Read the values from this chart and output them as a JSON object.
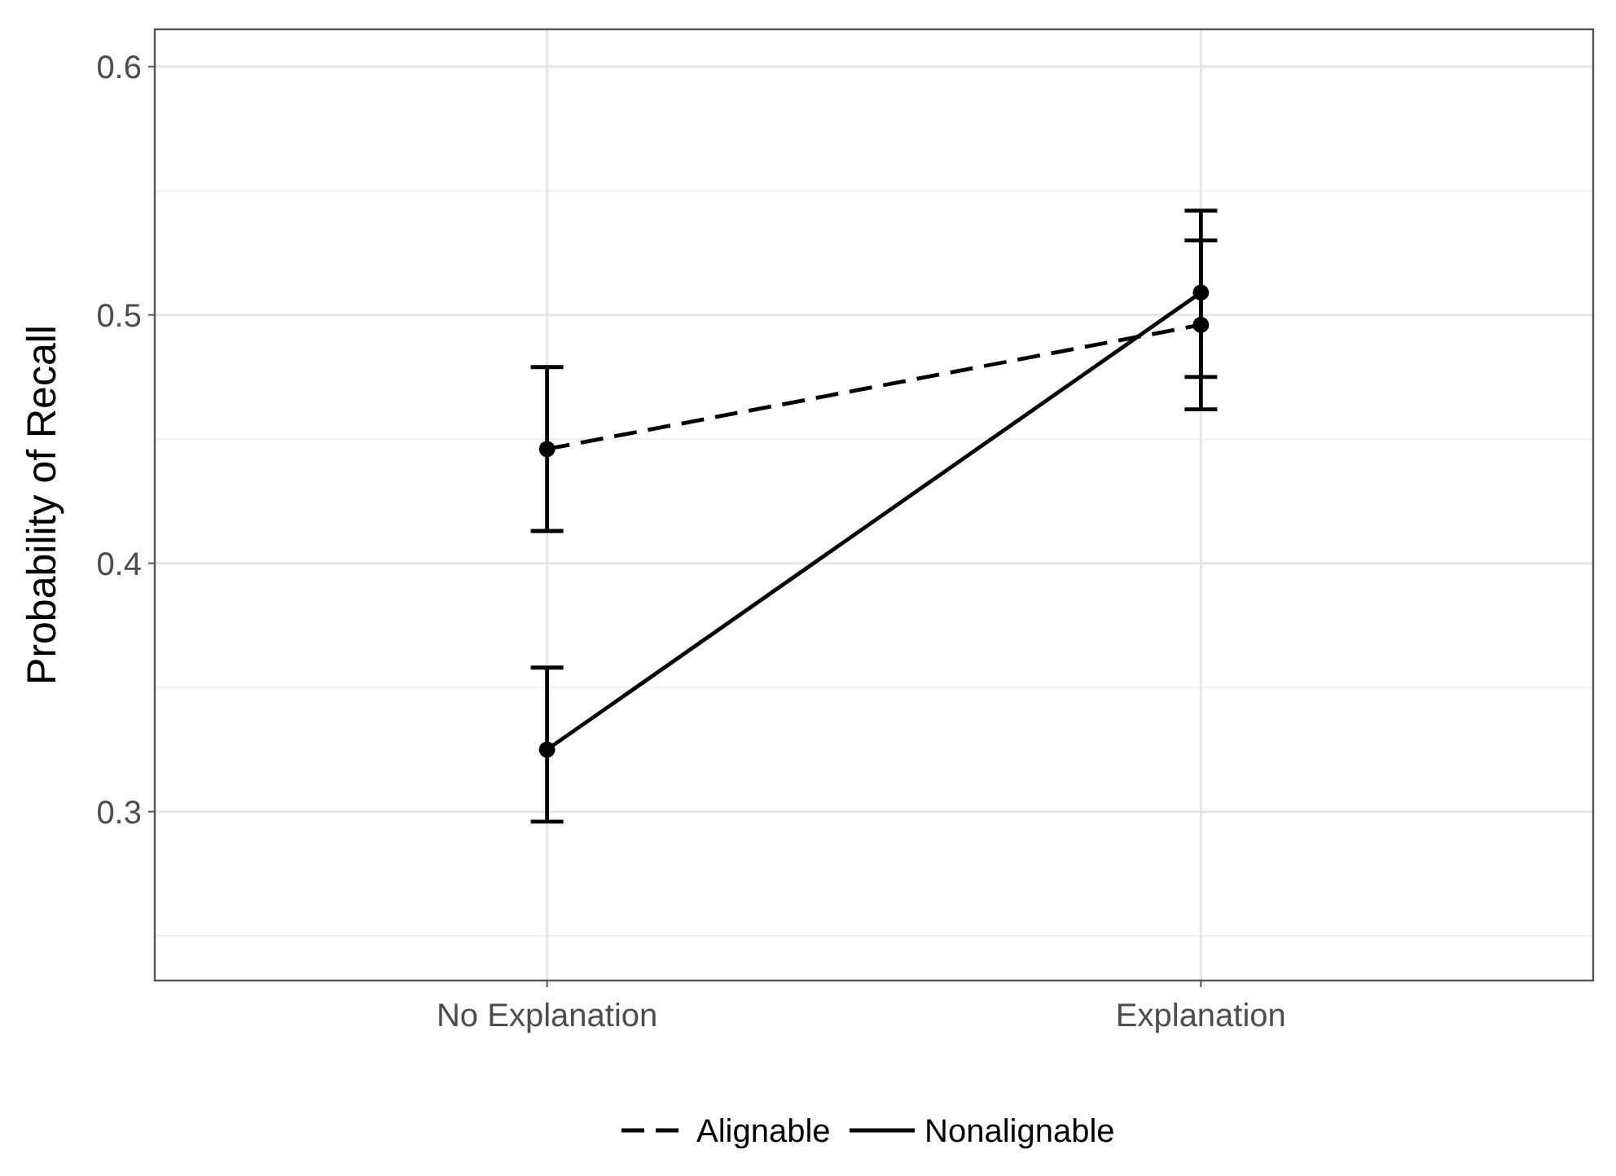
{
  "chart_data": {
    "type": "line",
    "ylabel": "Probability of Recall",
    "categories": [
      "No Explanation",
      "Explanation"
    ],
    "series": [
      {
        "name": "Alignable",
        "color": "#000000",
        "line_style": "dashed",
        "values": [
          0.446,
          0.496
        ],
        "errors": [
          [
            0.413,
            0.479
          ],
          [
            0.462,
            0.53
          ]
        ]
      },
      {
        "name": "Nonalignable",
        "color": "#000000",
        "line_style": "solid",
        "values": [
          0.325,
          0.509
        ],
        "errors": [
          [
            0.296,
            0.358
          ],
          [
            0.475,
            0.542
          ]
        ]
      }
    ],
    "ylim": [
      0.232,
      0.615
    ],
    "yticks": [
      0.3,
      0.4,
      0.5,
      0.6
    ],
    "grid": true,
    "legend": "bottom",
    "marker": "circle"
  }
}
